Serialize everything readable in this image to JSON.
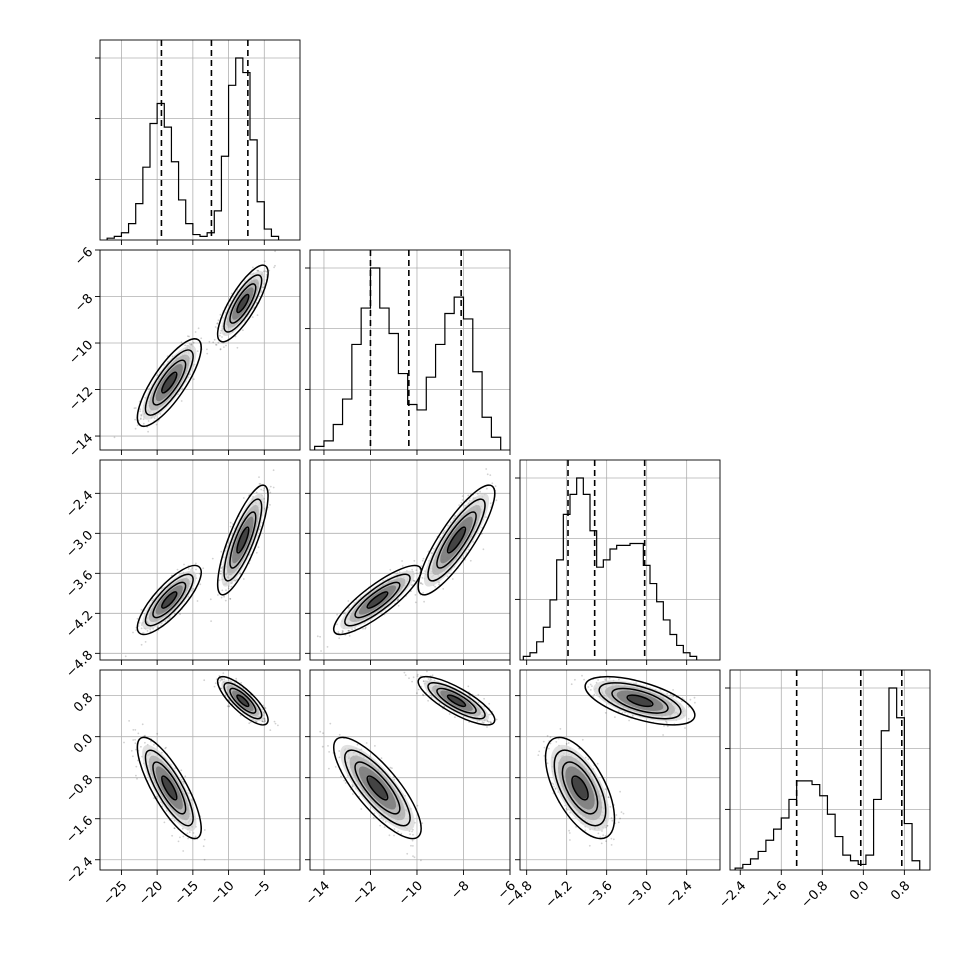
{
  "chart_data": {
    "type": "corner",
    "parameters": 4,
    "grid": true,
    "axes": [
      {
        "range": [
          -28,
          0
        ],
        "ticks": [
          -25,
          -20,
          -15,
          -10,
          -5
        ],
        "tick_labels": [
          "−25",
          "−20",
          "−15",
          "−10",
          "−5"
        ],
        "quantiles": [
          -19.4,
          -12.4,
          -7.3
        ],
        "modes": [
          {
            "mu": -18.3,
            "sigma": 1.9,
            "weight": 1.0
          },
          {
            "mu": -8.0,
            "sigma": 1.5,
            "weight": 1.0
          }
        ],
        "histogram": {
          "bin_edges": [
            -27,
            -26,
            -25,
            -24,
            -23,
            -22,
            -21,
            -20,
            -19,
            -18,
            -17,
            -16,
            -15,
            -14,
            -13,
            -12,
            -11,
            -10,
            -9,
            -8,
            -7,
            -6,
            -5,
            -4,
            -3
          ],
          "counts": [
            0.01,
            0.02,
            0.04,
            0.09,
            0.2,
            0.4,
            0.64,
            0.75,
            0.62,
            0.43,
            0.22,
            0.09,
            0.03,
            0.02,
            0.04,
            0.16,
            0.46,
            0.85,
            1.0,
            0.92,
            0.55,
            0.21,
            0.06,
            0.02
          ]
        }
      },
      {
        "range": [
          -14.6,
          -6
        ],
        "ticks": [
          -14,
          -12,
          -10,
          -8,
          -6
        ],
        "tick_labels": [
          "−14",
          "−12",
          "−10",
          "−8",
          "−6"
        ],
        "quantiles": [
          -12.0,
          -10.35,
          -8.1
        ],
        "modes": [
          {
            "mu": -11.7,
            "sigma": 0.8,
            "weight": 1.0
          },
          {
            "mu": -8.3,
            "sigma": 0.7,
            "weight": 1.0
          }
        ],
        "histogram": {
          "bin_edges": [
            -14.4,
            -14.0,
            -13.6,
            -13.2,
            -12.8,
            -12.4,
            -12.0,
            -11.6,
            -11.2,
            -10.8,
            -10.4,
            -10.0,
            -9.6,
            -9.2,
            -8.8,
            -8.4,
            -8.0,
            -7.6,
            -7.2,
            -6.8,
            -6.4
          ],
          "counts": [
            0.02,
            0.05,
            0.14,
            0.28,
            0.58,
            0.78,
            1.0,
            0.78,
            0.64,
            0.42,
            0.25,
            0.22,
            0.4,
            0.58,
            0.75,
            0.84,
            0.72,
            0.43,
            0.18,
            0.07
          ]
        }
      },
      {
        "range": [
          -4.9,
          -1.9
        ],
        "ticks": [
          -4.8,
          -4.2,
          -3.6,
          -3.0,
          -2.4
        ],
        "tick_labels": [
          "−4.8",
          "−4.2",
          "−3.6",
          "−3.0",
          "−2.4"
        ],
        "quantiles": [
          -4.18,
          -3.78,
          -3.03
        ],
        "modes": [
          {
            "mu": -4.0,
            "sigma": 0.22,
            "weight": 1.0
          },
          {
            "mu": -3.1,
            "sigma": 0.35,
            "weight": 1.0
          }
        ],
        "histogram": {
          "bin_edges": [
            -4.85,
            -4.75,
            -4.65,
            -4.55,
            -4.45,
            -4.35,
            -4.25,
            -4.15,
            -4.05,
            -3.95,
            -3.85,
            -3.75,
            -3.65,
            -3.55,
            -3.45,
            -3.35,
            -3.25,
            -3.15,
            -3.05,
            -2.95,
            -2.85,
            -2.75,
            -2.65,
            -2.55,
            -2.45,
            -2.35,
            -2.25
          ],
          "counts": [
            0.02,
            0.04,
            0.1,
            0.18,
            0.33,
            0.55,
            0.8,
            0.91,
            1.0,
            0.91,
            0.71,
            0.51,
            0.55,
            0.61,
            0.63,
            0.63,
            0.64,
            0.64,
            0.52,
            0.42,
            0.32,
            0.22,
            0.14,
            0.08,
            0.04,
            0.02
          ]
        }
      },
      {
        "range": [
          -2.6,
          1.3
        ],
        "ticks": [
          -2.4,
          -1.6,
          -0.8,
          0.0,
          0.8
        ],
        "tick_labels": [
          "−2.4",
          "−1.6",
          "−0.8",
          "0.0",
          "0.8"
        ],
        "quantiles": [
          -1.3,
          -0.05,
          0.75
        ],
        "modes": [
          {
            "mu": -1.0,
            "sigma": 0.42,
            "weight": 1.0
          },
          {
            "mu": 0.7,
            "sigma": 0.2,
            "weight": 1.0
          }
        ],
        "histogram": {
          "bin_edges": [
            -2.5,
            -2.35,
            -2.2,
            -2.05,
            -1.9,
            -1.75,
            -1.6,
            -1.45,
            -1.3,
            -1.15,
            -1.0,
            -0.85,
            -0.7,
            -0.55,
            -0.4,
            -0.25,
            -0.1,
            0.05,
            0.2,
            0.35,
            0.5,
            0.65,
            0.8,
            0.95,
            1.1
          ],
          "counts": [
            0.01,
            0.03,
            0.06,
            0.1,
            0.16,
            0.22,
            0.28,
            0.38,
            0.48,
            0.48,
            0.46,
            0.4,
            0.3,
            0.18,
            0.08,
            0.05,
            0.03,
            0.08,
            0.38,
            0.75,
            0.98,
            0.82,
            0.25,
            0.05
          ]
        }
      }
    ],
    "correlations": {
      "0-1": 0.8,
      "0-2": 0.8,
      "0-3": -0.8,
      "1-2": 0.85,
      "1-3": -0.8,
      "2-3": -0.6
    }
  }
}
